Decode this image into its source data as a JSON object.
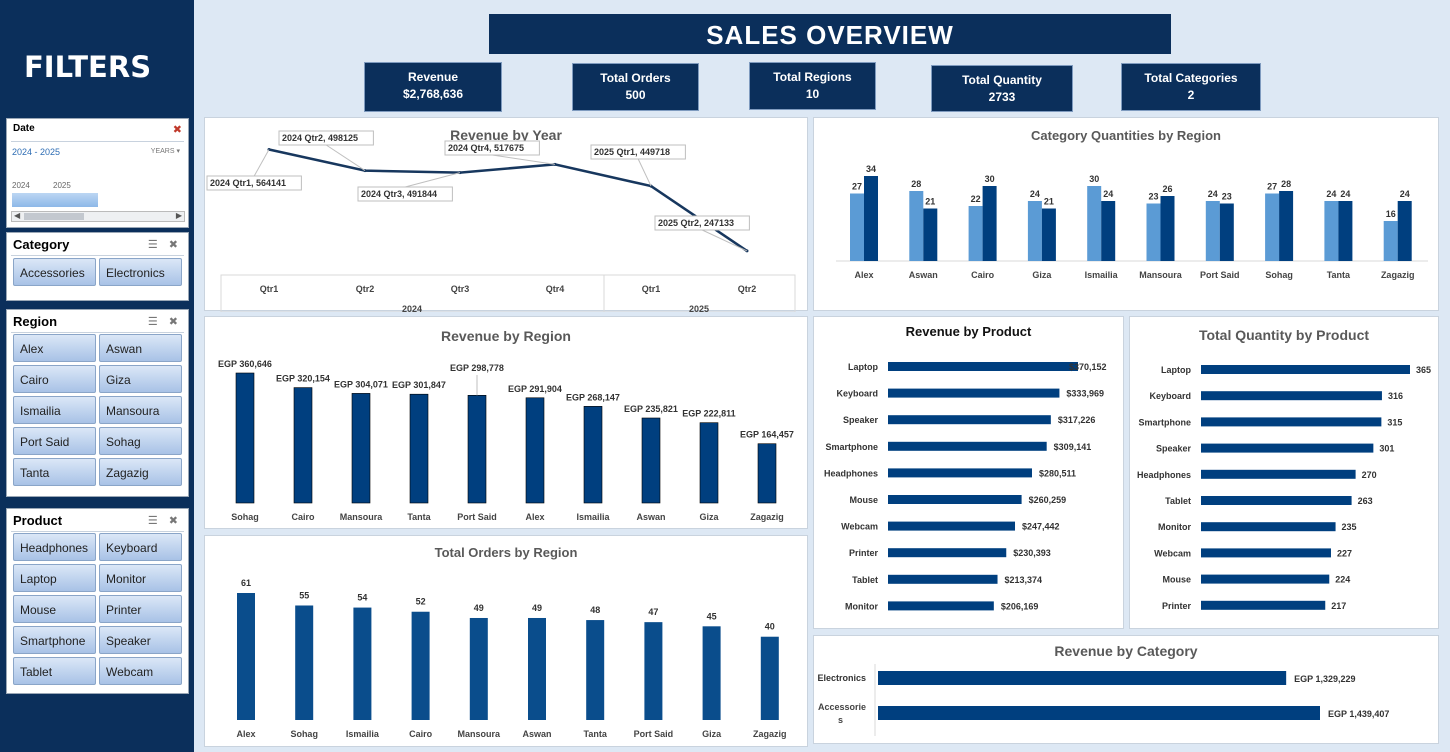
{
  "sidebar": {
    "title": "FILTERS",
    "date_slicer": {
      "label": "Date",
      "range": "2024 - 2025",
      "level": "YEARS",
      "years": [
        "2024",
        "2025"
      ]
    },
    "category_slicer": {
      "label": "Category",
      "items": [
        "Accessories",
        "Electronics"
      ]
    },
    "region_slicer": {
      "label": "Region",
      "items": [
        "Alex",
        "Aswan",
        "Cairo",
        "Giza",
        "Ismailia",
        "Mansoura",
        "Port Said",
        "Sohag",
        "Tanta",
        "Zagazig"
      ]
    },
    "product_slicer": {
      "label": "Product",
      "items": [
        "Headphones",
        "Keyboard",
        "Laptop",
        "Monitor",
        "Mouse",
        "Printer",
        "Smartphone",
        "Speaker",
        "Tablet",
        "Webcam"
      ]
    }
  },
  "header": {
    "title": "SALES  OVERVIEW"
  },
  "kpis": [
    {
      "label": "Revenue",
      "value": "$2,768,636"
    },
    {
      "label": "Total Orders",
      "value": "500"
    },
    {
      "label": "Total Regions",
      "value": "10"
    },
    {
      "label": "Total Quantity",
      "value": "2733"
    },
    {
      "label": "Total Categories",
      "value": "2"
    }
  ],
  "colors": {
    "navy": "#0b2f5b",
    "bar_dark": "#003f7f",
    "bar_light": "#5b9bd5",
    "bar_mid": "#0a4d8c"
  },
  "chart_data": [
    {
      "id": "revenue_by_year",
      "type": "line",
      "title": "Revenue by Year",
      "x": [
        "Qtr1",
        "Qtr2",
        "Qtr3",
        "Qtr4",
        "Qtr1",
        "Qtr2"
      ],
      "groups": [
        "2024",
        "2025"
      ],
      "values": [
        564141,
        498125,
        491844,
        517675,
        449718,
        247133
      ],
      "labels": [
        "2024 Qtr1, 564141",
        "2024 Qtr2, 498125",
        "2024 Qtr3, 491844",
        "2024 Qtr4, 517675",
        "2025 Qtr1, 449718",
        "2025 Qtr2, 247133"
      ]
    },
    {
      "id": "category_quantities_by_region",
      "type": "bar",
      "title": "Category Quantities by Region",
      "categories": [
        "Alex",
        "Aswan",
        "Cairo",
        "Giza",
        "Ismailia",
        "Mansoura",
        "Port Said",
        "Sohag",
        "Tanta",
        "Zagazig"
      ],
      "series": [
        {
          "values": [
            27,
            28,
            22,
            24,
            30,
            23,
            24,
            27,
            24,
            16
          ]
        },
        {
          "values": [
            34,
            21,
            30,
            21,
            24,
            26,
            23,
            28,
            24,
            24
          ]
        }
      ]
    },
    {
      "id": "revenue_by_region",
      "type": "bar",
      "title": "Revenue by Region",
      "categories": [
        "Sohag",
        "Cairo",
        "Mansoura",
        "Tanta",
        "Port Said",
        "Alex",
        "Ismailia",
        "Aswan",
        "Giza",
        "Zagazig"
      ],
      "values": [
        360646,
        320154,
        304071,
        301847,
        298778,
        291904,
        268147,
        235821,
        222811,
        164457
      ],
      "data_labels": [
        "EGP 360,646",
        "EGP 320,154",
        "EGP 304,071",
        "EGP 301,847",
        "EGP 298,778",
        "EGP 291,904",
        "EGP 268,147",
        "EGP 235,821",
        "EGP 222,811",
        "EGP 164,457"
      ]
    },
    {
      "id": "total_orders_by_region",
      "type": "bar",
      "title": "Total Orders by Region",
      "categories": [
        "Alex",
        "Sohag",
        "Ismailia",
        "Cairo",
        "Mansoura",
        "Aswan",
        "Tanta",
        "Port Said",
        "Giza",
        "Zagazig"
      ],
      "values": [
        61,
        55,
        54,
        52,
        49,
        49,
        48,
        47,
        45,
        40
      ]
    },
    {
      "id": "revenue_by_product",
      "type": "bar",
      "title": "Revenue by Product",
      "categories": [
        "Laptop",
        "Keyboard",
        "Speaker",
        "Smartphone",
        "Headphones",
        "Mouse",
        "Webcam",
        "Printer",
        "Tablet",
        "Monitor"
      ],
      "values": [
        370152,
        333969,
        317226,
        309141,
        280511,
        260259,
        247442,
        230393,
        213374,
        206169
      ],
      "data_labels": [
        "$370,152",
        "$333,969",
        "$317,226",
        "$309,141",
        "$280,511",
        "$260,259",
        "$247,442",
        "$230,393",
        "$213,374",
        "$206,169"
      ]
    },
    {
      "id": "total_quantity_by_product",
      "type": "bar",
      "title": "Total Quantity by Product",
      "categories": [
        "Laptop",
        "Keyboard",
        "Smartphone",
        "Speaker",
        "Headphones",
        "Tablet",
        "Monitor",
        "Webcam",
        "Mouse",
        "Printer"
      ],
      "values": [
        365,
        316,
        315,
        301,
        270,
        263,
        235,
        227,
        224,
        217
      ]
    },
    {
      "id": "revenue_by_category",
      "type": "bar",
      "title": "Revenue by Category",
      "categories": [
        "Electronics",
        "Accessories"
      ],
      "values": [
        1329229,
        1439407
      ],
      "data_labels": [
        "EGP 1,329,229",
        "EGP 1,439,407"
      ]
    }
  ]
}
